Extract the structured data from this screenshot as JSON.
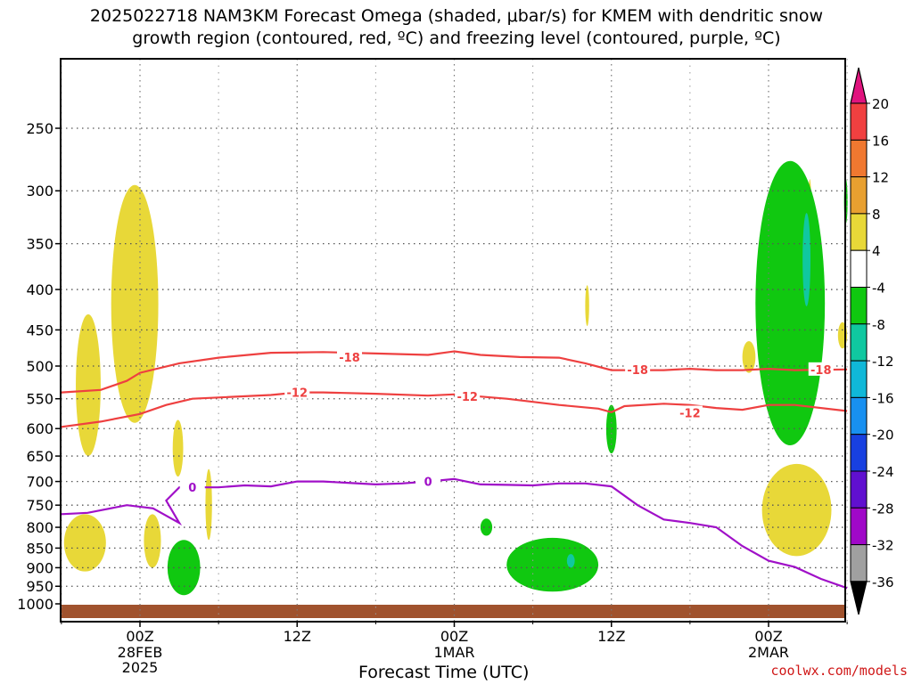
{
  "title_line1": "2025022718 NAM3KM Forecast Omega (shaded, μbar/s) for KMEM with dendritic snow",
  "title_line2": "growth region (contoured, red, ºC) and freezing level (contoured, purple, ºC)",
  "credit": "coolwx.com/models",
  "chart_data": {
    "type": "time-height cross section",
    "xlabel": "Forecast Time (UTC)",
    "ylabel": "",
    "y_log_pressure": true,
    "ylim": [
      1000,
      190
    ],
    "grid": true,
    "x_ticks": [
      {
        "time": "00Z",
        "date": "28FEB",
        "year": "2025",
        "hour": 0
      },
      {
        "time": "12Z",
        "date": "",
        "year": "",
        "hour": 12
      },
      {
        "time": "00Z",
        "date": "1MAR",
        "year": "",
        "hour": 24
      },
      {
        "time": "12Z",
        "date": "",
        "year": "",
        "hour": 36
      },
      {
        "time": "00Z",
        "date": "2MAR",
        "year": "",
        "hour": 48
      }
    ],
    "xlim_hours": [
      -6,
      54
    ],
    "pressure_levels": [
      250,
      300,
      350,
      400,
      450,
      500,
      550,
      600,
      650,
      700,
      750,
      800,
      850,
      900,
      950,
      1000
    ],
    "colorbar": {
      "labels": [
        "20",
        "16",
        "12",
        "8",
        "4",
        "-4",
        "-8",
        "-12",
        "-16",
        "-20",
        "-24",
        "-28",
        "-32",
        "-36"
      ],
      "colors": [
        "#e0147e",
        "#f04040",
        "#f07830",
        "#e8a030",
        "#e8d838",
        "#ffffff",
        "#10c810",
        "#10c8a0",
        "#10b8d8",
        "#1890f0",
        "#1840e0",
        "#6010d0",
        "#a008c8",
        "#a0a0a0",
        "#000000"
      ]
    },
    "contours": [
      {
        "label": "-18",
        "color": "#ee4040",
        "label_positions": [
          [
            16,
            487
          ],
          [
            38,
            505
          ],
          [
            52,
            505
          ]
        ],
        "points": [
          [
            -6,
            540
          ],
          [
            -3,
            536
          ],
          [
            -1,
            522
          ],
          [
            0,
            510
          ],
          [
            3,
            496
          ],
          [
            6,
            488
          ],
          [
            10,
            481
          ],
          [
            14,
            480
          ],
          [
            18,
            482
          ],
          [
            22,
            484
          ],
          [
            24,
            479
          ],
          [
            26,
            484
          ],
          [
            29,
            487
          ],
          [
            32,
            488
          ],
          [
            34,
            496
          ],
          [
            36,
            506
          ],
          [
            38,
            506
          ],
          [
            40,
            506
          ],
          [
            42,
            504
          ],
          [
            44,
            506
          ],
          [
            46,
            506
          ],
          [
            48,
            504
          ],
          [
            50,
            506
          ],
          [
            54,
            505
          ]
        ]
      },
      {
        "label": "-12",
        "color": "#ee4040",
        "label_positions": [
          [
            12,
            540
          ],
          [
            25,
            546
          ],
          [
            42,
            573
          ]
        ],
        "points": [
          [
            -6,
            597
          ],
          [
            -3,
            588
          ],
          [
            0,
            575
          ],
          [
            2,
            560
          ],
          [
            4,
            550
          ],
          [
            6,
            548
          ],
          [
            10,
            544
          ],
          [
            12,
            540
          ],
          [
            14,
            540
          ],
          [
            18,
            542
          ],
          [
            22,
            545
          ],
          [
            24,
            543
          ],
          [
            28,
            550
          ],
          [
            32,
            560
          ],
          [
            35,
            566
          ],
          [
            36,
            572
          ],
          [
            37,
            562
          ],
          [
            40,
            558
          ],
          [
            42,
            560
          ],
          [
            44,
            565
          ],
          [
            46,
            568
          ],
          [
            48,
            560
          ],
          [
            50,
            560
          ],
          [
            54,
            570
          ]
        ]
      },
      {
        "label": "0",
        "color": "#a010c8",
        "label_positions": [
          [
            4,
            712
          ],
          [
            22,
            700
          ]
        ],
        "points": [
          [
            -6,
            770
          ],
          [
            -4,
            767
          ],
          [
            -1,
            750
          ],
          [
            1,
            757
          ],
          [
            3,
            790
          ],
          [
            2,
            740
          ],
          [
            3,
            712
          ],
          [
            6,
            712
          ],
          [
            8,
            708
          ],
          [
            10,
            710
          ],
          [
            12,
            700
          ],
          [
            14,
            700
          ],
          [
            18,
            706
          ],
          [
            20,
            704
          ],
          [
            22,
            700
          ],
          [
            24,
            695
          ],
          [
            26,
            706
          ],
          [
            28,
            707
          ],
          [
            30,
            708
          ],
          [
            32,
            704
          ],
          [
            34,
            704
          ],
          [
            36,
            710
          ],
          [
            38,
            750
          ],
          [
            40,
            782
          ],
          [
            42,
            790
          ],
          [
            44,
            800
          ],
          [
            46,
            845
          ],
          [
            48,
            882
          ],
          [
            50,
            898
          ],
          [
            52,
            930
          ],
          [
            54,
            955
          ]
        ]
      }
    ],
    "omega_regions": [
      {
        "bin": "4 to 8",
        "color": "#e8d838",
        "hour_range": [
          -4.9,
          -3.0
        ],
        "p_range": [
          430,
          650
        ]
      },
      {
        "bin": "4 to 8",
        "color": "#e8d838",
        "hour_range": [
          -5.8,
          -2.6
        ],
        "p_range": [
          770,
          910
        ]
      },
      {
        "bin": "4 to 8",
        "color": "#e8d838",
        "hour_range": [
          -2.2,
          1.4
        ],
        "p_range": [
          295,
          590
        ]
      },
      {
        "bin": "4 to 8",
        "color": "#e8d838",
        "hour_range": [
          2.5,
          3.3
        ],
        "p_range": [
          585,
          690
        ]
      },
      {
        "bin": "4 to 8",
        "color": "#e8d838",
        "hour_range": [
          0.3,
          1.6
        ],
        "p_range": [
          770,
          900
        ]
      },
      {
        "bin": "4 to 8",
        "color": "#e8d838",
        "hour_range": [
          5.0,
          5.5
        ],
        "p_range": [
          675,
          830
        ]
      },
      {
        "bin": "4 to 8",
        "color": "#e8d838",
        "hour_range": [
          34.0,
          34.3
        ],
        "p_range": [
          395,
          445
        ]
      },
      {
        "bin": "4 to 8",
        "color": "#e8d838",
        "hour_range": [
          46.0,
          47.0
        ],
        "p_range": [
          465,
          510
        ]
      },
      {
        "bin": "4 to 8",
        "color": "#e8d838",
        "hour_range": [
          47.5,
          52.8
        ],
        "p_range": [
          665,
          870
        ]
      },
      {
        "bin": "4 to 8",
        "color": "#e8d838",
        "hour_range": [
          51.0,
          51.3
        ],
        "p_range": [
          290,
          390
        ]
      },
      {
        "bin": "4 to 8",
        "color": "#e8d838",
        "hour_range": [
          53.3,
          54.0
        ],
        "p_range": [
          440,
          475
        ]
      },
      {
        "bin": "-4 to -8",
        "color": "#10c810",
        "hour_range": [
          2.1,
          4.6
        ],
        "p_range": [
          830,
          975
        ]
      },
      {
        "bin": "-4 to -8",
        "color": "#10c810",
        "hour_range": [
          26.0,
          26.9
        ],
        "p_range": [
          780,
          820
        ]
      },
      {
        "bin": "-4 to -8",
        "color": "#10c810",
        "hour_range": [
          28.0,
          35.0
        ],
        "p_range": [
          825,
          965
        ]
      },
      {
        "bin": "-4 to -8",
        "color": "#10c810",
        "hour_range": [
          35.6,
          36.4
        ],
        "p_range": [
          560,
          645
        ]
      },
      {
        "bin": "-4 to -8",
        "color": "#10c810",
        "hour_range": [
          47.0,
          52.3
        ],
        "p_range": [
          275,
          630
        ]
      },
      {
        "bin": "-4 to -8",
        "color": "#10c810",
        "hour_range": [
          53.8,
          54.0
        ],
        "p_range": [
          290,
          330
        ]
      },
      {
        "bin": "-8 to -12",
        "color": "#10c8a0",
        "hour_range": [
          32.6,
          33.2
        ],
        "p_range": [
          865,
          900
        ]
      },
      {
        "bin": "-8 to -12",
        "color": "#10c8a0",
        "hour_range": [
          50.6,
          51.2
        ],
        "p_range": [
          320,
          420
        ]
      }
    ],
    "terrain_color": "#a0522d"
  }
}
